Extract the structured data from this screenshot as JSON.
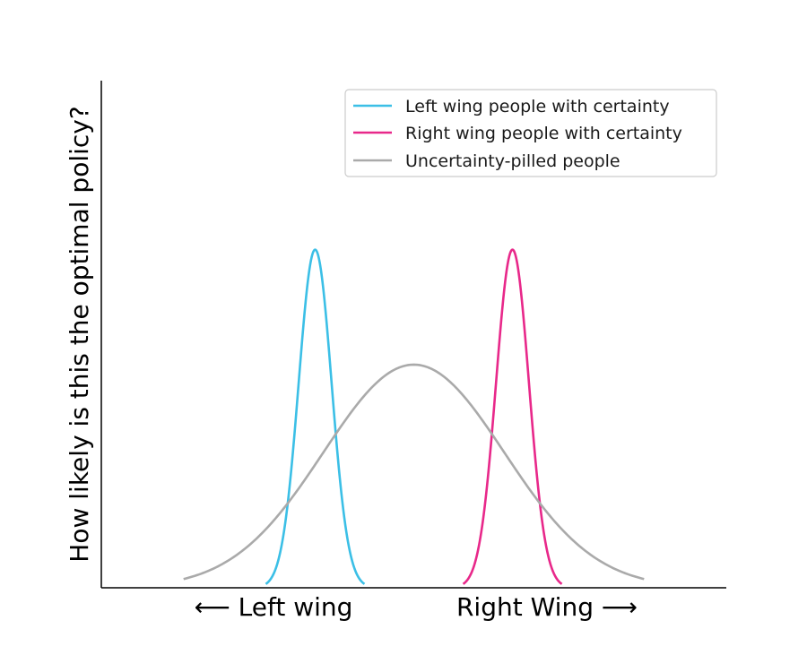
{
  "chart_data": {
    "type": "line",
    "title": "",
    "xlabel": "",
    "ylabel": "How likely is this the optimal policy?",
    "x_tick_labels": [
      "⟵  Left wing",
      "Right Wing ⟶"
    ],
    "xlim": [
      -1.9,
      1.9
    ],
    "ylim": [
      0,
      1.5
    ],
    "grid": false,
    "legend_position": "top-right",
    "series": [
      {
        "name": "Left wing people with certainty",
        "color": "#3bbfe6",
        "shape": "gaussian",
        "mean": -0.6,
        "sd": 0.1,
        "peak": 1.0,
        "x_range": [
          -0.9,
          -0.3
        ]
      },
      {
        "name": "Right wing people with certainty",
        "color": "#e8288a",
        "shape": "gaussian",
        "mean": 0.6,
        "sd": 0.1,
        "peak": 1.0,
        "x_range": [
          0.3,
          0.9
        ]
      },
      {
        "name": "Uncertainty-pilled people",
        "color": "#aaaaaa",
        "shape": "gaussian",
        "mean": 0.0,
        "sd": 0.55,
        "peak": 0.66,
        "x_range": [
          -1.4,
          1.4
        ]
      }
    ]
  }
}
